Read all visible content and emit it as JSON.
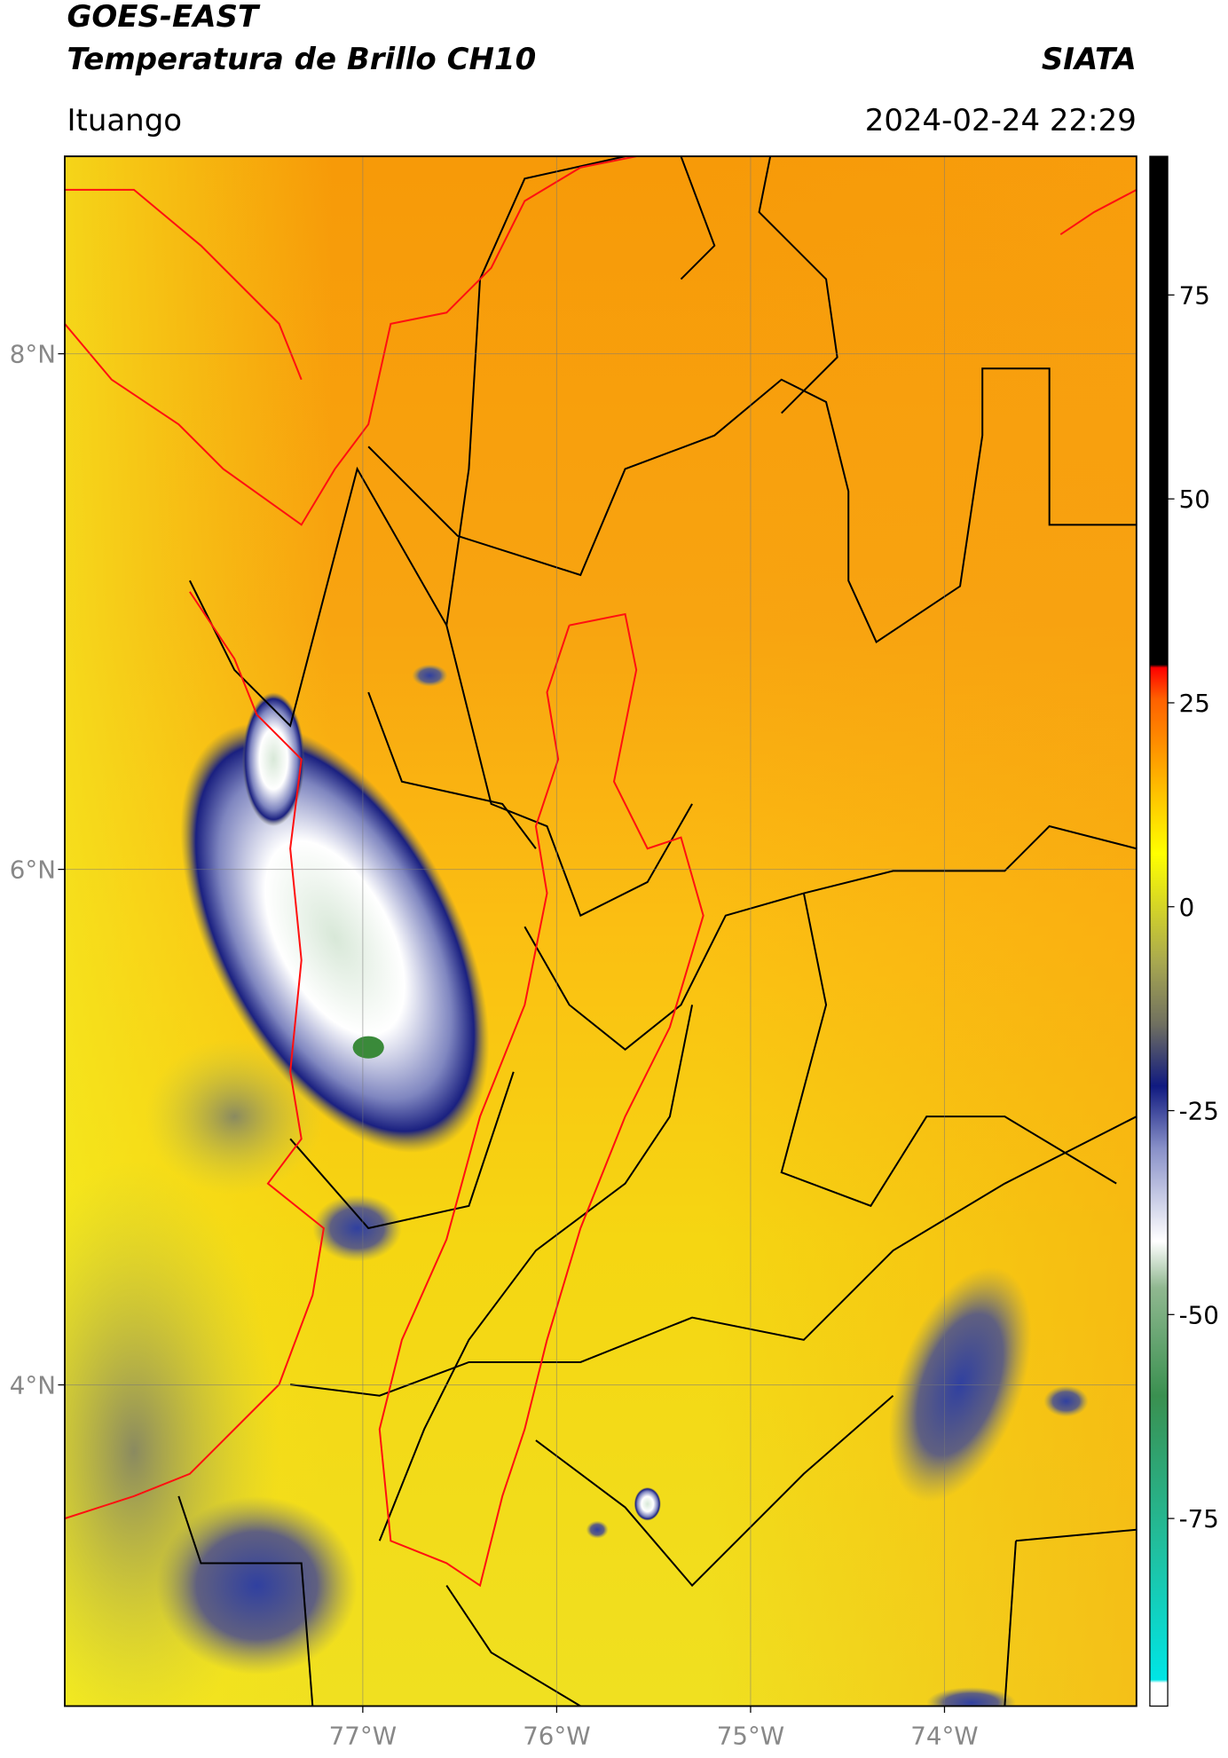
{
  "header": {
    "title_line1": "GOES-EAST",
    "title_line2": "Temperatura de Brillo CH10",
    "org": "SIATA",
    "location": "Ituango",
    "timestamp": "2024-02-24 22:29"
  },
  "map": {
    "lat_lim": [
      2.754,
      8.766
    ],
    "lon_lim": [
      -78.537,
      -73.01
    ],
    "lat_ticks": [
      {
        "value": 8,
        "label": "8°N"
      },
      {
        "value": 6,
        "label": "6°N"
      },
      {
        "value": 4,
        "label": "4°N"
      }
    ],
    "lon_ticks": [
      {
        "value": -77,
        "label": "77°W"
      },
      {
        "value": -76,
        "label": "76°W"
      },
      {
        "value": -75,
        "label": "75°W"
      },
      {
        "value": -74,
        "label": "74°W"
      }
    ]
  },
  "colorbar": {
    "lim": [
      -98,
      92
    ],
    "ticks": [
      75,
      50,
      25,
      0,
      -25,
      -50,
      -75
    ]
  }
}
